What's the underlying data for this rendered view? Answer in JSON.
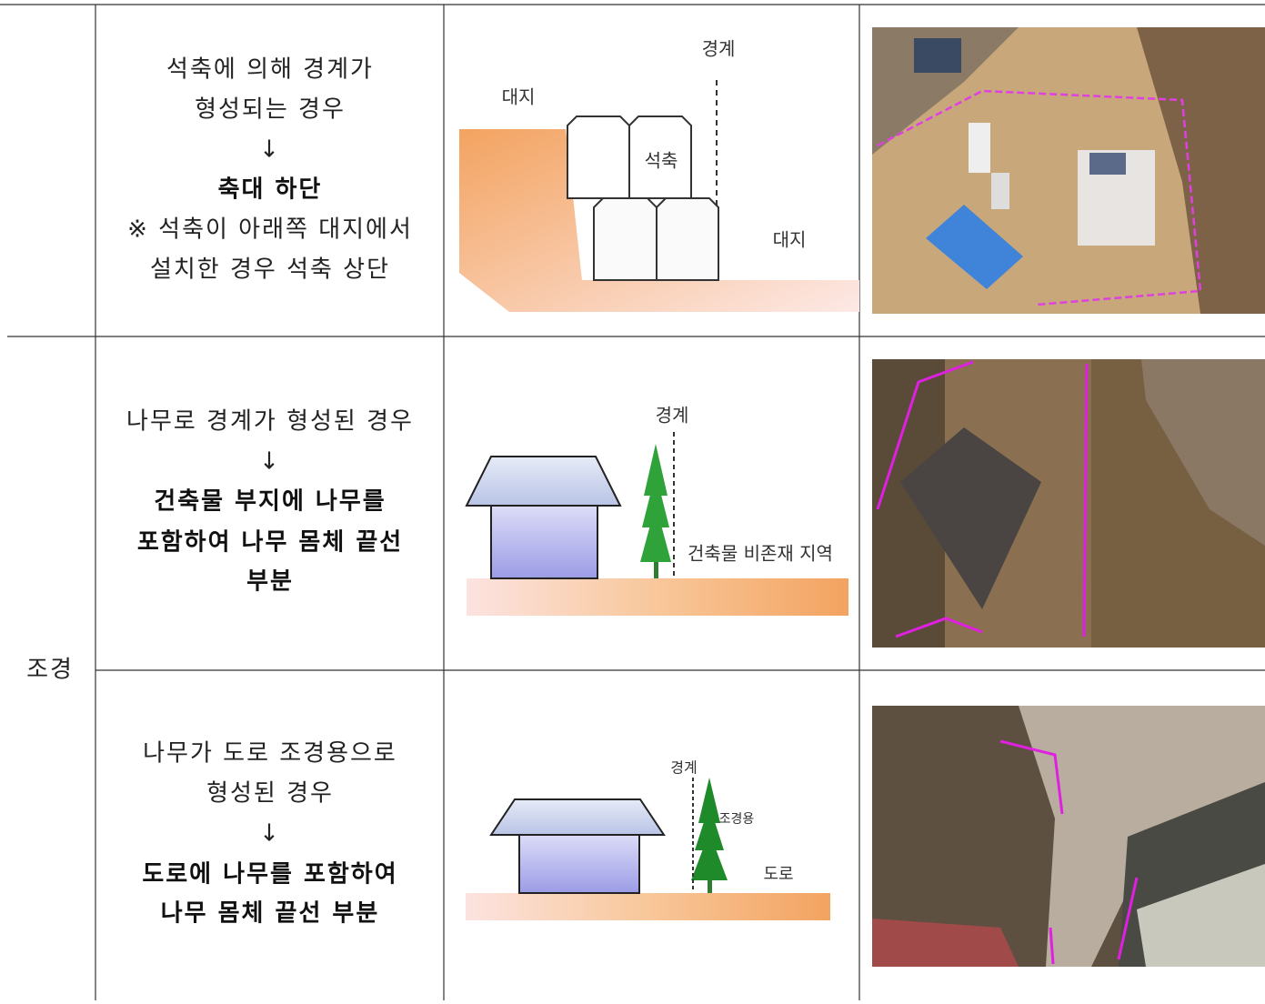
{
  "group": {
    "label": "조경"
  },
  "table": {
    "rows": [
      {
        "description": [
          "석축에 의해 경계가",
          "형성되는 경우"
        ],
        "arrow": "↓",
        "result": [
          "축대 하단"
        ],
        "note": [
          "※ 석축이 아래쪽 대지에서",
          "설치한 경우 석축 상단"
        ],
        "diagram_labels": {
          "boundary": "경계",
          "upper_land": "대지",
          "wall": "석축",
          "lower_land": "대지"
        }
      },
      {
        "description": [
          "나무로 경계가 형성된 경우"
        ],
        "arrow": "↓",
        "result": [
          "건축물 부지에 나무를",
          "포함하여 나무 몸체 끝선",
          "부분"
        ],
        "diagram_labels": {
          "boundary": "경계",
          "zone": "건축물 비존재 지역"
        }
      },
      {
        "description": [
          "나무가 도로 조경용으로",
          "형성된 경우"
        ],
        "arrow": "↓",
        "result": [
          "도로에 나무를 포함하여",
          "나무 몸체 끝선 부분"
        ],
        "diagram_labels": {
          "boundary": "경계",
          "tree": "조경용",
          "road": "도로"
        }
      }
    ]
  }
}
